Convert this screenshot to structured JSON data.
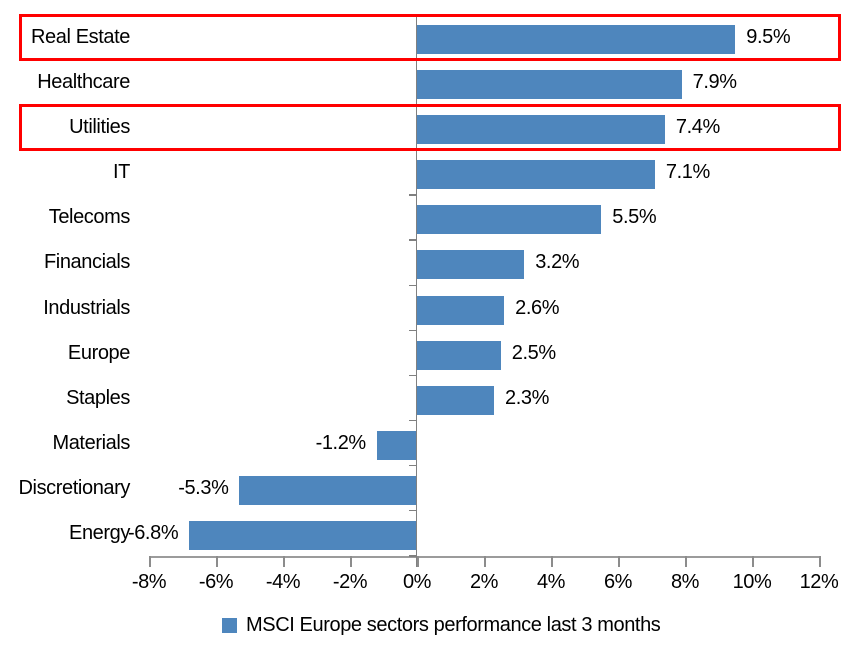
{
  "chart_data": {
    "type": "bar",
    "orientation": "horizontal",
    "title": "",
    "categories": [
      "Real Estate",
      "Healthcare",
      "Utilities",
      "IT",
      "Telecoms",
      "Financials",
      "Industrials",
      "Europe",
      "Staples",
      "Materials",
      "Discretionary",
      "Energy"
    ],
    "values": [
      9.5,
      7.9,
      7.4,
      7.1,
      5.5,
      3.2,
      2.6,
      2.5,
      2.3,
      -1.2,
      -5.3,
      -6.8
    ],
    "value_labels": [
      "9.5%",
      "7.9%",
      "7.4%",
      "7.1%",
      "5.5%",
      "3.2%",
      "2.6%",
      "2.5%",
      "2.3%",
      "-1.2%",
      "-5.3%",
      "-6.8%"
    ],
    "xlim": [
      -8,
      12
    ],
    "x_ticks": {
      "values": [
        -8,
        -6,
        -4,
        -2,
        0,
        2,
        4,
        6,
        8,
        10,
        12
      ],
      "labels": [
        "-8%",
        "-6%",
        "-4%",
        "-2%",
        "0%",
        "2%",
        "4%",
        "6%",
        "8%",
        "10%",
        "12%"
      ]
    },
    "grid": false,
    "highlighted_categories": [
      "Real Estate",
      "Utilities"
    ],
    "legend": {
      "position": "bottom",
      "label": "MSCI Europe sectors performance last 3 months"
    },
    "colors": {
      "bar": "#4E86BD",
      "axis_line": "#9B9B9B",
      "category_axis_line": "#808080",
      "tick": "#8C8C8C",
      "highlight_box": "#FF0000",
      "text": "#000000",
      "background": "#FFFFFF"
    }
  }
}
